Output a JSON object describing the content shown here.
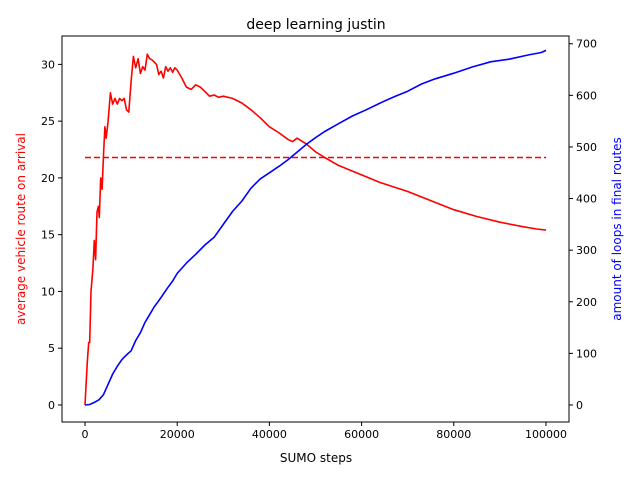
{
  "chart_data": {
    "type": "line",
    "title": "deep learning justin",
    "xlabel": "SUMO steps",
    "ylabel_left": "average vehicle route on arrival",
    "ylabel_right": "amount of loops in final routes",
    "xlim": [
      -5000,
      105000
    ],
    "ylim_left": [
      -1.5,
      32.5
    ],
    "ylim_right": [
      -33,
      715
    ],
    "x_ticks": [
      0,
      20000,
      40000,
      60000,
      80000,
      100000
    ],
    "x_tick_labels": [
      "0",
      "20000",
      "40000",
      "60000",
      "80000",
      "100000"
    ],
    "y_left_ticks": [
      0,
      5,
      10,
      15,
      20,
      25,
      30
    ],
    "y_left_tick_labels": [
      "0",
      "5",
      "10",
      "15",
      "20",
      "25",
      "30"
    ],
    "y_right_ticks": [
      0,
      100,
      200,
      300,
      400,
      500,
      600,
      700
    ],
    "y_right_tick_labels": [
      "0",
      "100",
      "200",
      "300",
      "400",
      "500",
      "600",
      "700"
    ],
    "grid": false,
    "colors": {
      "left": "#ff0000",
      "right": "#0000ff"
    },
    "series": [
      {
        "axis": "left",
        "style": "solid",
        "color": "#ff0000",
        "x": [
          0,
          500,
          800,
          1000,
          1300,
          1700,
          2000,
          2300,
          2600,
          2900,
          3100,
          3400,
          3700,
          4000,
          4300,
          4600,
          5000,
          5500,
          6000,
          6500,
          7000,
          7500,
          8000,
          8500,
          9000,
          9500,
          10000,
          10500,
          11000,
          11500,
          12000,
          12500,
          13000,
          13500,
          14000,
          14500,
          15000,
          15500,
          16000,
          16500,
          17000,
          17500,
          18000,
          18500,
          19000,
          19500,
          20000,
          21000,
          22000,
          23000,
          24000,
          25000,
          26000,
          27000,
          28000,
          29000,
          30000,
          32000,
          34000,
          36000,
          38000,
          40000,
          42000,
          44000,
          45000,
          46000,
          48000,
          50000,
          52000,
          55000,
          58000,
          61000,
          64000,
          67000,
          70000,
          75000,
          80000,
          85000,
          90000,
          95000,
          98000,
          100000
        ],
        "y": [
          0,
          3.8,
          5.5,
          5.5,
          10,
          12,
          14.5,
          12.8,
          17,
          17.5,
          16.5,
          20,
          19,
          22,
          24.5,
          23.5,
          25,
          27.5,
          26.5,
          27,
          26.5,
          27,
          26.8,
          27,
          26,
          25.8,
          28.5,
          30.7,
          29.7,
          30.5,
          29.2,
          29.8,
          29.5,
          30.9,
          30.5,
          30.4,
          30.2,
          30,
          29.1,
          29.4,
          28.8,
          29.8,
          29.4,
          29.7,
          29.3,
          29.7,
          29.5,
          28.8,
          28,
          27.8,
          28.2,
          28,
          27.6,
          27.2,
          27.3,
          27.1,
          27.2,
          27,
          26.6,
          26,
          25.3,
          24.5,
          24,
          23.4,
          23.2,
          23.5,
          23,
          22.3,
          21.8,
          21.1,
          20.6,
          20.1,
          19.6,
          19.2,
          18.8,
          18,
          17.2,
          16.6,
          16.1,
          15.7,
          15.5,
          15.4
        ]
      },
      {
        "axis": "left",
        "style": "dashed",
        "color": "#ff0000",
        "x": [
          0,
          100000
        ],
        "y": [
          21.8,
          21.8
        ]
      },
      {
        "axis": "right",
        "style": "solid",
        "color": "#0000ff",
        "x": [
          0,
          1000,
          2000,
          3000,
          4000,
          5000,
          6000,
          7000,
          8000,
          9000,
          10000,
          11000,
          12000,
          13000,
          14000,
          15000,
          16000,
          17000,
          18000,
          19000,
          20000,
          22000,
          24000,
          26000,
          28000,
          30000,
          32000,
          34000,
          36000,
          38000,
          40000,
          42000,
          44000,
          46000,
          48000,
          50000,
          52000,
          55000,
          58000,
          61000,
          64000,
          67000,
          70000,
          73000,
          76000,
          80000,
          84000,
          88000,
          92000,
          96000,
          99000,
          100000
        ],
        "y": [
          0,
          1,
          5,
          10,
          20,
          40,
          60,
          75,
          88,
          97,
          105,
          125,
          140,
          160,
          175,
          190,
          202,
          215,
          228,
          240,
          255,
          275,
          292,
          310,
          325,
          350,
          375,
          395,
          420,
          438,
          450,
          462,
          475,
          490,
          505,
          518,
          530,
          545,
          560,
          572,
          585,
          597,
          608,
          622,
          632,
          643,
          655,
          665,
          670,
          678,
          683,
          687
        ]
      }
    ]
  }
}
